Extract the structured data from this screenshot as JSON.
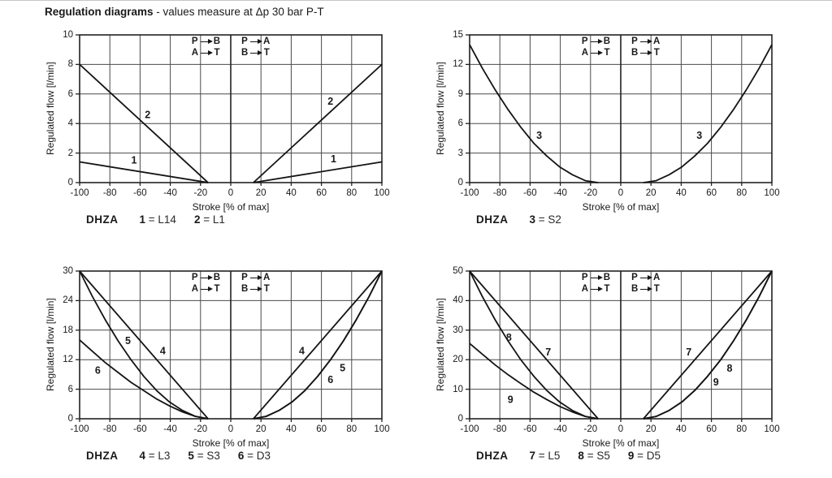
{
  "page": {
    "title_bold": "Regulation diagrams",
    "title_rest": " - values measure at Δp 30 bar P-T"
  },
  "colors": {
    "curve": "#141414",
    "grid": "#4a4a4a",
    "frame": "#222222",
    "text": "#1a1a1a"
  },
  "legend": {
    "groups": [
      {
        "rows": [
          [
            "P",
            "B"
          ],
          [
            "A",
            "T"
          ]
        ]
      },
      {
        "rows": [
          [
            "P",
            "A"
          ],
          [
            "B",
            "T"
          ]
        ]
      }
    ]
  },
  "axes": {
    "y_label": "Regulated flow [l/min]",
    "x_label": "Stroke [% of max]",
    "x_ticks": [
      -100,
      -80,
      -60,
      -40,
      -20,
      0,
      20,
      40,
      60,
      80,
      100
    ],
    "xlim": [
      -100,
      100
    ]
  },
  "chart_data": [
    {
      "type": "line",
      "id": "dhza-flow-chart-1",
      "title": "DHZA 1 = L14, 2 = L1",
      "ylim": [
        0,
        10
      ],
      "yticks": [
        0,
        2,
        4,
        6,
        8,
        10
      ],
      "dead_band_pct": 15,
      "caption": {
        "model": "DHZA",
        "items": [
          {
            "num": "1",
            "code": "L14"
          },
          {
            "num": "2",
            "code": "L1"
          }
        ]
      },
      "curves": [
        {
          "id": "1",
          "points": [
            [
              15,
              0
            ],
            [
              100,
              1.4
            ]
          ],
          "mirror": true
        },
        {
          "id": "2",
          "points": [
            [
              15,
              0
            ],
            [
              100,
              8
            ]
          ],
          "mirror": true
        }
      ],
      "curve_labels": [
        {
          "text": "2",
          "x": -55,
          "y": 4.6
        },
        {
          "text": "2",
          "x": 66,
          "y": 5.5
        },
        {
          "text": "1",
          "x": -64,
          "y": 1.5
        },
        {
          "text": "1",
          "x": 68,
          "y": 1.6
        }
      ]
    },
    {
      "type": "line",
      "id": "dhza-flow-chart-2",
      "title": "DHZA 3 = S2",
      "ylim": [
        0,
        15
      ],
      "yticks": [
        0,
        3,
        6,
        9,
        12,
        15
      ],
      "dead_band_pct": 15,
      "caption": {
        "model": "DHZA",
        "items": [
          {
            "num": "3",
            "code": "S2"
          }
        ]
      },
      "curves": [
        {
          "id": "3",
          "points": [
            [
              15,
              0
            ],
            [
              23.5,
              0.2
            ],
            [
              32,
              0.8
            ],
            [
              40.5,
              1.6
            ],
            [
              49,
              2.7
            ],
            [
              57.5,
              4.0
            ],
            [
              66,
              5.6
            ],
            [
              74.5,
              7.4
            ],
            [
              83,
              9.4
            ],
            [
              91.5,
              11.6
            ],
            [
              100,
              14
            ]
          ],
          "mirror": true
        }
      ],
      "curve_labels": [
        {
          "text": "3",
          "x": -54,
          "y": 4.8
        },
        {
          "text": "3",
          "x": 52,
          "y": 4.8
        }
      ]
    },
    {
      "type": "line",
      "id": "dhza-flow-chart-3",
      "title": "DHZA 4 = L3, 5 = S3, 6 = D3",
      "ylim": [
        0,
        30
      ],
      "yticks": [
        0,
        6,
        12,
        18,
        24,
        30
      ],
      "dead_band_pct": 15,
      "caption": {
        "model": "DHZA",
        "items": [
          {
            "num": "4",
            "code": "L3"
          },
          {
            "num": "5",
            "code": "S3"
          },
          {
            "num": "6",
            "code": "D3"
          }
        ]
      },
      "curves": [
        {
          "id": "4",
          "points": [
            [
              15,
              0
            ],
            [
              100,
              30
            ]
          ],
          "mirror": true
        },
        {
          "id": "5",
          "points": [
            [
              15,
              0
            ],
            [
              23.5,
              0.5
            ],
            [
              32,
              1.7
            ],
            [
              40.5,
              3.4
            ],
            [
              49,
              5.7
            ],
            [
              57.5,
              8.6
            ],
            [
              66,
              12.0
            ],
            [
              74.5,
              15.8
            ],
            [
              83,
              20.1
            ],
            [
              91.5,
              24.8
            ],
            [
              100,
              30
            ]
          ],
          "mirror": true
        },
        {
          "id": "6",
          "points": [
            [
              15,
              0
            ],
            [
              23.5,
              0.5
            ],
            [
              32,
              1.7
            ],
            [
              40.5,
              3.4
            ],
            [
              49,
              5.7
            ],
            [
              57.5,
              8.6
            ],
            [
              66,
              12.0
            ],
            [
              74.5,
              15.8
            ],
            [
              83,
              20.1
            ],
            [
              91.5,
              24.8
            ],
            [
              100,
              30
            ]
          ],
          "left_points": [
            [
              15,
              0
            ],
            [
              23.5,
              0.5
            ],
            [
              32,
              1.4
            ],
            [
              40.5,
              2.6
            ],
            [
              49,
              4.0
            ],
            [
              57.5,
              5.7
            ],
            [
              66,
              7.4
            ],
            [
              74.5,
              9.4
            ],
            [
              83,
              11.4
            ],
            [
              91.5,
              13.7
            ],
            [
              100,
              16
            ]
          ],
          "mirror": true
        }
      ],
      "curve_labels": [
        {
          "text": "5",
          "x": -68,
          "y": 15.8
        },
        {
          "text": "4",
          "x": -45,
          "y": 13.8
        },
        {
          "text": "6",
          "x": -88,
          "y": 9.8
        },
        {
          "text": "4",
          "x": 47,
          "y": 13.8
        },
        {
          "text": "5",
          "x": 74,
          "y": 10.3
        },
        {
          "text": "6",
          "x": 66,
          "y": 7.9
        }
      ]
    },
    {
      "type": "line",
      "id": "dhza-flow-chart-4",
      "title": "DHZA 7 = L5, 8 = S5, 9 = D5",
      "ylim": [
        0,
        50
      ],
      "yticks": [
        0,
        10,
        20,
        30,
        40,
        50
      ],
      "dead_band_pct": 15,
      "caption": {
        "model": "DHZA",
        "items": [
          {
            "num": "7",
            "code": "L5"
          },
          {
            "num": "8",
            "code": "S5"
          },
          {
            "num": "9",
            "code": "D5"
          }
        ]
      },
      "curves": [
        {
          "id": "7",
          "points": [
            [
              15,
              0
            ],
            [
              100,
              50
            ]
          ],
          "mirror": true
        },
        {
          "id": "8",
          "points": [
            [
              15,
              0
            ],
            [
              23.5,
              0.8
            ],
            [
              32,
              2.8
            ],
            [
              40.5,
              5.7
            ],
            [
              49,
              9.6
            ],
            [
              57.5,
              14.4
            ],
            [
              66,
              19.9
            ],
            [
              74.5,
              26.3
            ],
            [
              83,
              33.4
            ],
            [
              91.5,
              41.3
            ],
            [
              100,
              50
            ]
          ],
          "mirror": true
        },
        {
          "id": "9",
          "points": [
            [
              15,
              0
            ],
            [
              23.5,
              0.8
            ],
            [
              32,
              2.8
            ],
            [
              40.5,
              5.7
            ],
            [
              49,
              9.6
            ],
            [
              57.5,
              14.4
            ],
            [
              66,
              19.9
            ],
            [
              74.5,
              26.3
            ],
            [
              83,
              33.4
            ],
            [
              91.5,
              41.3
            ],
            [
              100,
              50
            ]
          ],
          "left_points": [
            [
              15,
              0
            ],
            [
              23.5,
              0.8
            ],
            [
              32,
              2.3
            ],
            [
              40.5,
              4.2
            ],
            [
              49,
              6.5
            ],
            [
              57.5,
              9.0
            ],
            [
              66,
              11.9
            ],
            [
              74.5,
              14.9
            ],
            [
              83,
              18.2
            ],
            [
              91.5,
              21.8
            ],
            [
              100,
              25.5
            ]
          ],
          "mirror": true
        }
      ],
      "curve_labels": [
        {
          "text": "8",
          "x": -74,
          "y": 27.5
        },
        {
          "text": "7",
          "x": -48,
          "y": 22.5
        },
        {
          "text": "9",
          "x": -73,
          "y": 6.5
        },
        {
          "text": "7",
          "x": 45,
          "y": 22.5
        },
        {
          "text": "8",
          "x": 72,
          "y": 17.0
        },
        {
          "text": "9",
          "x": 63,
          "y": 12.3
        }
      ]
    }
  ]
}
